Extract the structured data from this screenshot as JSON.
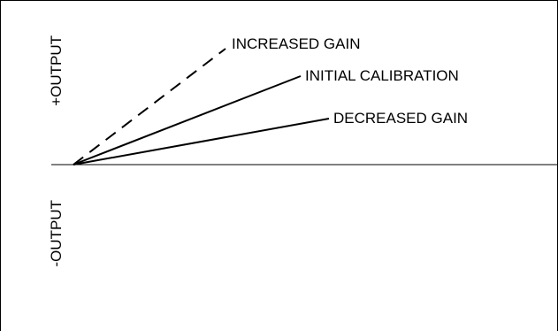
{
  "axis": {
    "positive_label": "+OUTPUT",
    "negative_label": "-OUTPUT"
  },
  "lines": [
    {
      "label": "INCREASED GAIN",
      "style": "dashed"
    },
    {
      "label": "INITIAL CALIBRATION",
      "style": "solid"
    },
    {
      "label": "DECREASED GAIN",
      "style": "solid"
    }
  ],
  "colors": {
    "stroke": "#000000",
    "background": "#ffffff"
  }
}
